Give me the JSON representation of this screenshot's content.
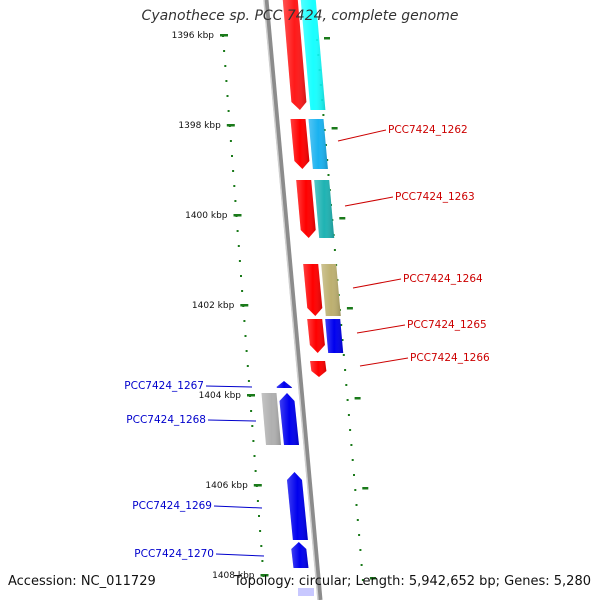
{
  "title": "Cyanothece sp. PCC 7424, complete genome",
  "footer": {
    "accession": "Accession: NC_011729",
    "topology": "Topology: circular; Length: 5,942,652 bp; Genes: 5,280"
  },
  "colors": {
    "backbone": "#8c8c8c",
    "tick": "#1a7a1a",
    "forward_label": "#cc0000",
    "reverse_label": "#0000cc"
  },
  "scale_ticks": [
    "1396 kbp",
    "1398 kbp",
    "1400 kbp",
    "1402 kbp",
    "1404 kbp",
    "1406 kbp",
    "1408 kbp"
  ],
  "genes": [
    {
      "id": "g1261",
      "label": "",
      "strand": "forward",
      "colors": [
        "#ff0000",
        "#00ffff"
      ]
    },
    {
      "id": "g1262",
      "label": "PCC7424_1262",
      "strand": "forward",
      "colors": [
        "#ff0000",
        "#1ab2f0"
      ]
    },
    {
      "id": "g1263",
      "label": "PCC7424_1263",
      "strand": "forward",
      "colors": [
        "#ff0000",
        "#1fb3b3"
      ]
    },
    {
      "id": "g1264",
      "label": "PCC7424_1264",
      "strand": "forward",
      "colors": [
        "#ff0000",
        "#bdb070"
      ]
    },
    {
      "id": "g1265",
      "label": "PCC7424_1265",
      "strand": "forward",
      "colors": [
        "#ff0000",
        "#0000ee"
      ]
    },
    {
      "id": "g1266",
      "label": "PCC7424_1266",
      "strand": "forward",
      "colors": [
        "#ff0000"
      ]
    },
    {
      "id": "g1267",
      "label": "PCC7424_1267",
      "strand": "reverse",
      "colors": [
        "#0000ee"
      ]
    },
    {
      "id": "g1268",
      "label": "PCC7424_1268",
      "strand": "reverse",
      "colors": [
        "#b0b0b0",
        "#0000ee"
      ]
    },
    {
      "id": "g1269",
      "label": "PCC7424_1269",
      "strand": "reverse",
      "colors": [
        "#0000ee"
      ]
    },
    {
      "id": "g1270",
      "label": "PCC7424_1270",
      "strand": "reverse",
      "colors": [
        "#0000ee"
      ]
    }
  ]
}
